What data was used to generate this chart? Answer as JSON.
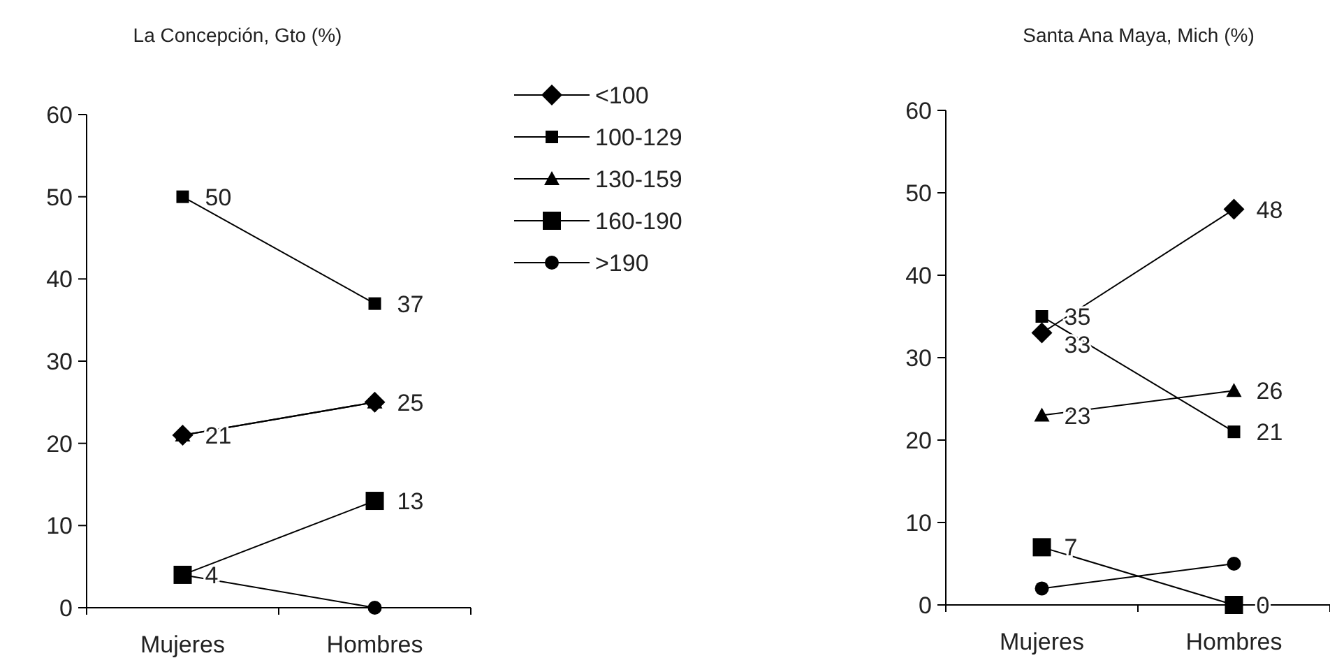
{
  "chart_data": [
    {
      "type": "line",
      "title": "La Concepción, Gto (%)",
      "categories": [
        "Mujeres",
        "Hombres"
      ],
      "ylim": [
        0,
        60
      ],
      "yticks": [
        0,
        10,
        20,
        30,
        40,
        50,
        60
      ],
      "legend": "right",
      "grid": false,
      "series": [
        {
          "name": "<100",
          "color": "#000000",
          "marker": "diamond",
          "values": [
            21,
            25
          ],
          "value_labels": [
            null,
            null
          ]
        },
        {
          "name": "100-129",
          "color": "#000000",
          "marker": "square",
          "values": [
            50,
            37
          ],
          "value_labels": [
            "50",
            "37"
          ]
        },
        {
          "name": "130-159",
          "color": "#000000",
          "marker": "triangle",
          "values": [
            21,
            25
          ],
          "value_labels": [
            "21",
            "25"
          ]
        },
        {
          "name": "160-190",
          "color": "#000000",
          "marker": "square",
          "values": [
            4,
            13
          ],
          "value_labels": [
            "4",
            "13"
          ]
        },
        {
          "name": ">190",
          "color": "#000000",
          "marker": "circle",
          "values": [
            4,
            0
          ],
          "value_labels": [
            null,
            null
          ]
        }
      ]
    },
    {
      "type": "line",
      "title": "Santa Ana Maya, Mich (%)",
      "categories": [
        "Mujeres",
        "Hombres"
      ],
      "ylim": [
        0,
        60
      ],
      "yticks": [
        0,
        10,
        20,
        30,
        40,
        50,
        60
      ],
      "grid": false,
      "series": [
        {
          "color": "#000000",
          "marker": "diamond",
          "values": [
            33,
            48
          ],
          "value_labels": [
            "33",
            "48"
          ]
        },
        {
          "color": "#000000",
          "marker": "square",
          "values": [
            35,
            21
          ],
          "value_labels": [
            "35",
            "21"
          ]
        },
        {
          "color": "#000000",
          "marker": "triangle",
          "values": [
            23,
            26
          ],
          "value_labels": [
            "23",
            "26"
          ]
        },
        {
          "color": "#000000",
          "marker": "square",
          "values": [
            7,
            0
          ],
          "value_labels": [
            "7",
            "0"
          ]
        },
        {
          "color": "#000000",
          "marker": "circle",
          "values": [
            2,
            5
          ],
          "value_labels": [
            null,
            null
          ]
        }
      ]
    }
  ]
}
